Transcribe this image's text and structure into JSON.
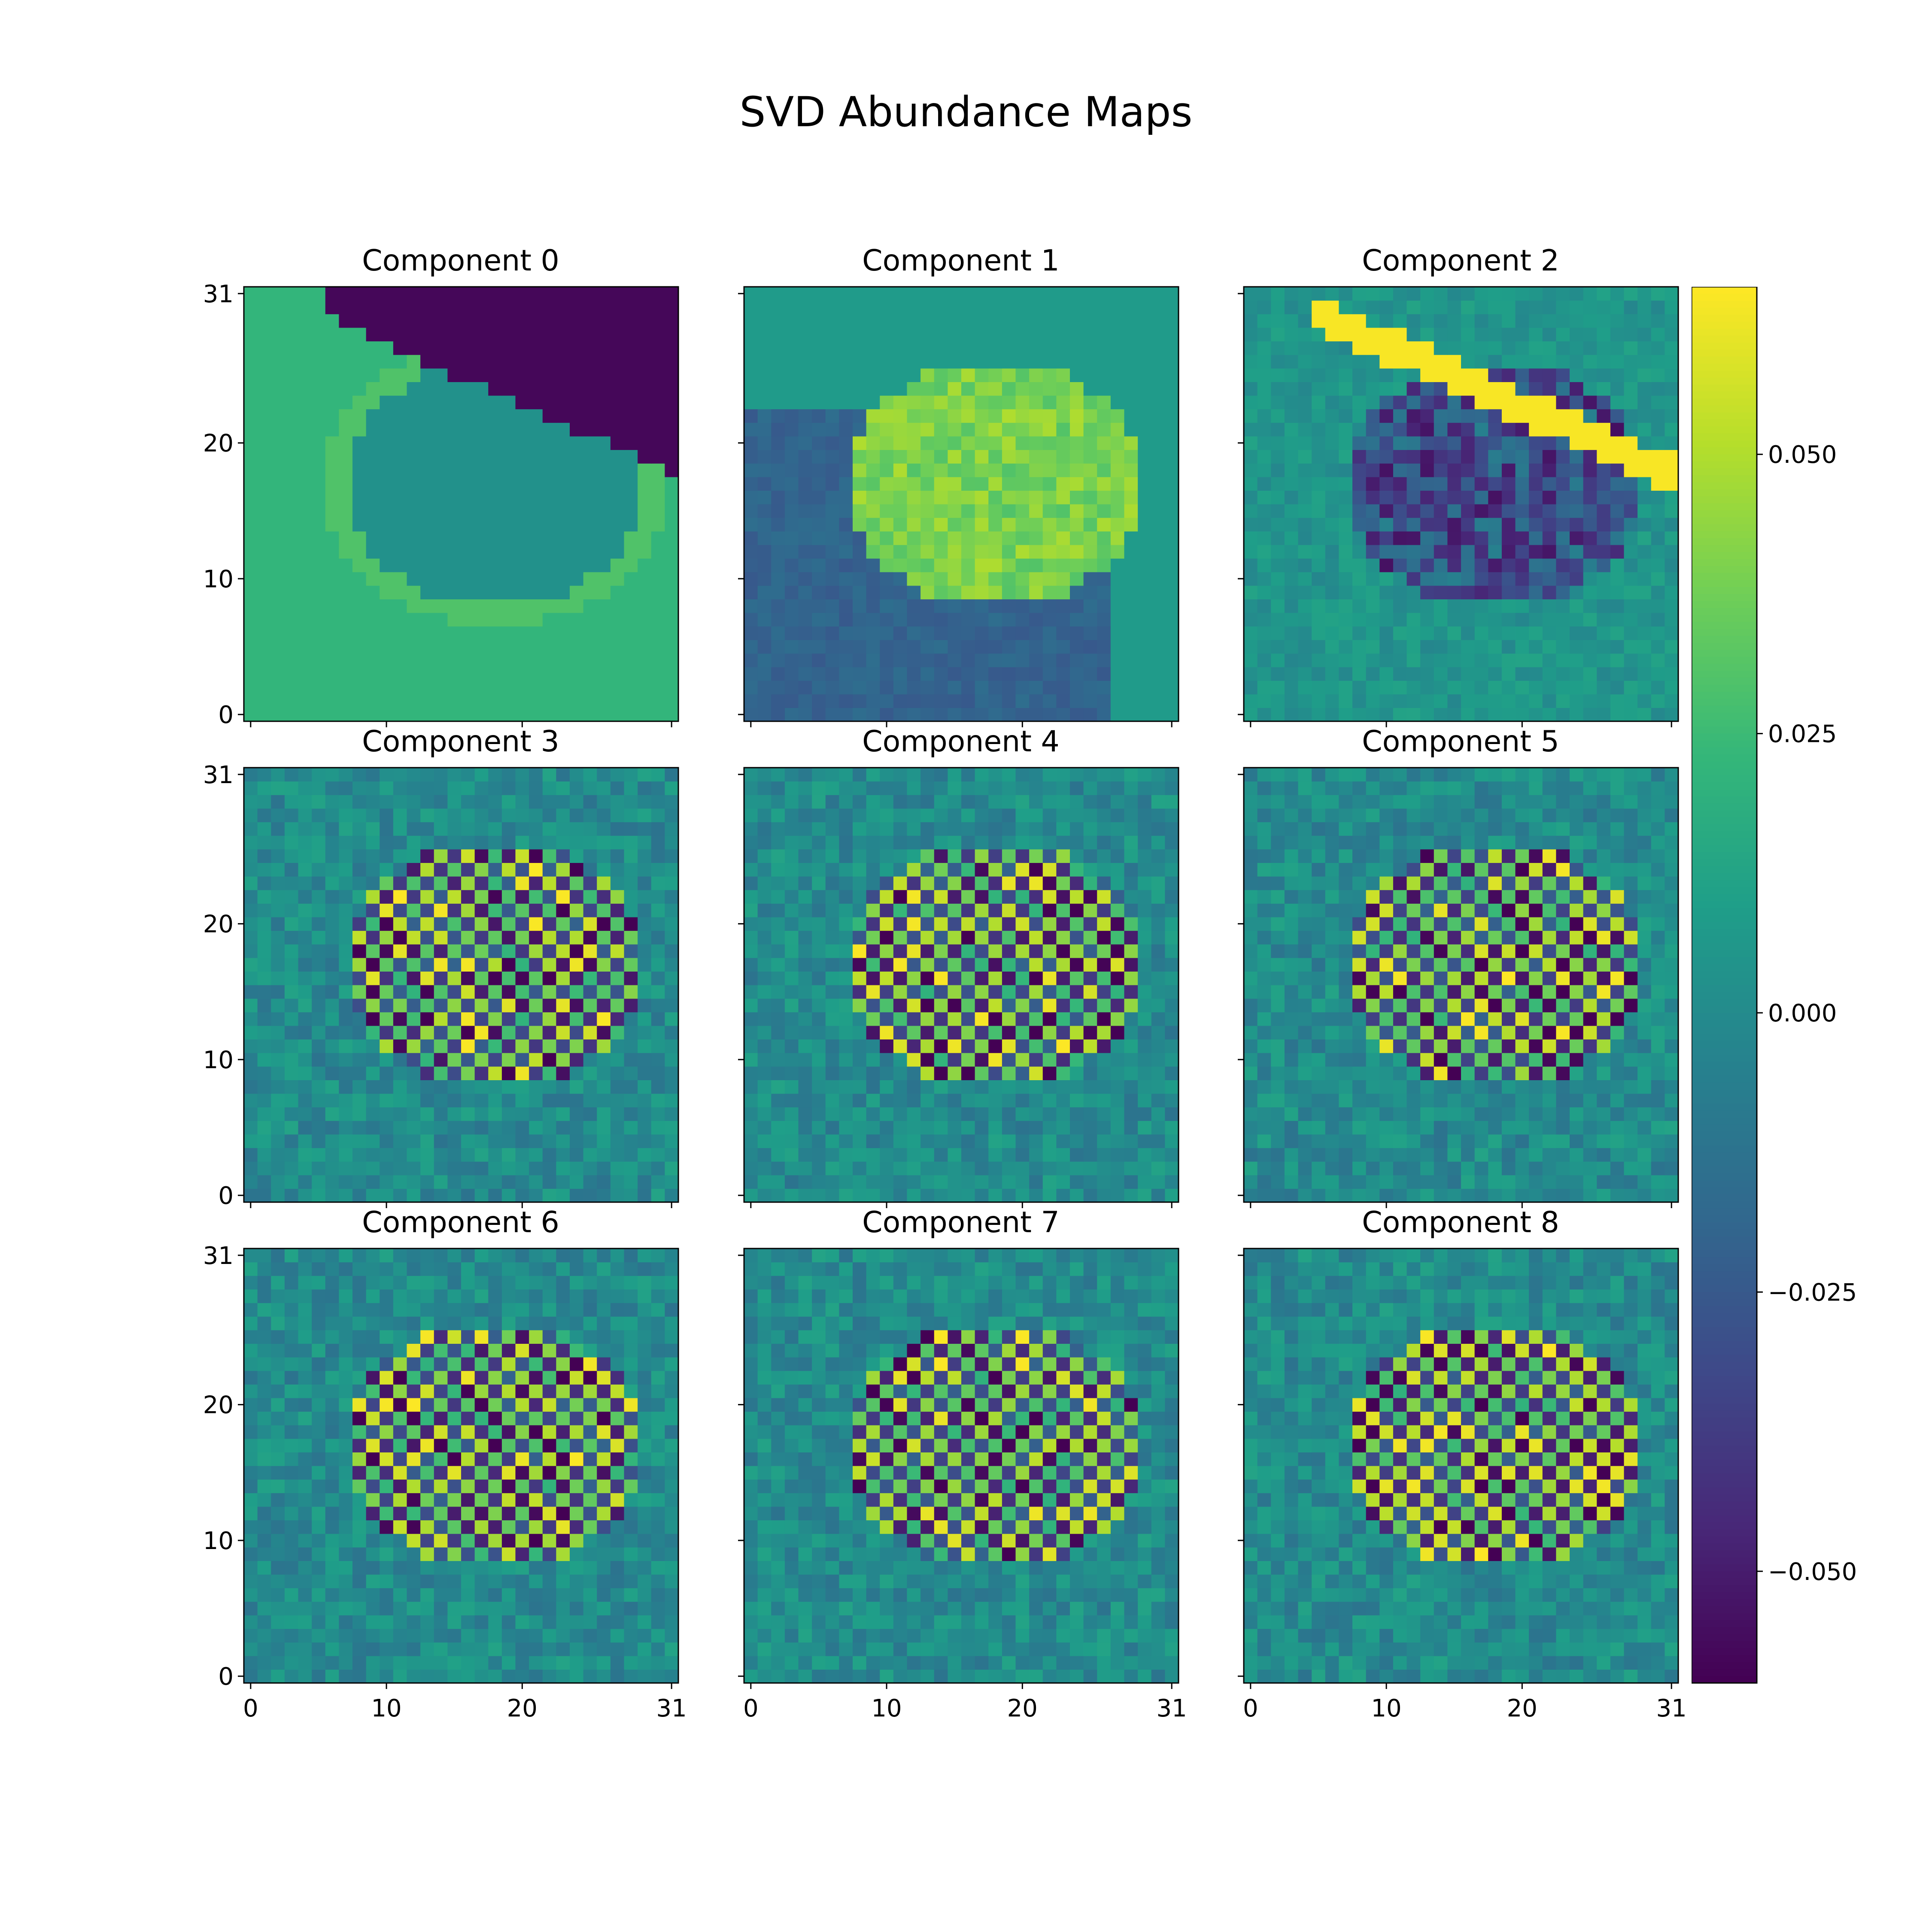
{
  "figure": {
    "title": "SVD Abundance Maps"
  },
  "chart_data": {
    "type": "heatmap",
    "title": "SVD Abundance Maps",
    "colormap": "viridis",
    "grid_size": 32,
    "x_ticks": [
      "0",
      "10",
      "20",
      "31"
    ],
    "y_ticks": [
      "0",
      "10",
      "20",
      "31"
    ],
    "x_tick_values": [
      0,
      10,
      20,
      31
    ],
    "y_tick_values": [
      0,
      10,
      20,
      31
    ],
    "xlim": [
      0,
      31
    ],
    "ylim": [
      0,
      31
    ],
    "color_range": [
      -0.06,
      0.065
    ],
    "colorbar_ticks": [
      "0.050",
      "0.025",
      "0.000",
      "−0.025",
      "−0.050"
    ],
    "colorbar_tick_values": [
      0.05,
      0.025,
      0.0,
      -0.025,
      -0.05
    ],
    "panels": [
      {
        "title": "Component 0"
      },
      {
        "title": "Component 1"
      },
      {
        "title": "Component 2"
      },
      {
        "title": "Component 3"
      },
      {
        "title": "Component 4"
      },
      {
        "title": "Component 5"
      },
      {
        "title": "Component 6"
      },
      {
        "title": "Component 7"
      },
      {
        "title": "Component 8"
      }
    ]
  }
}
